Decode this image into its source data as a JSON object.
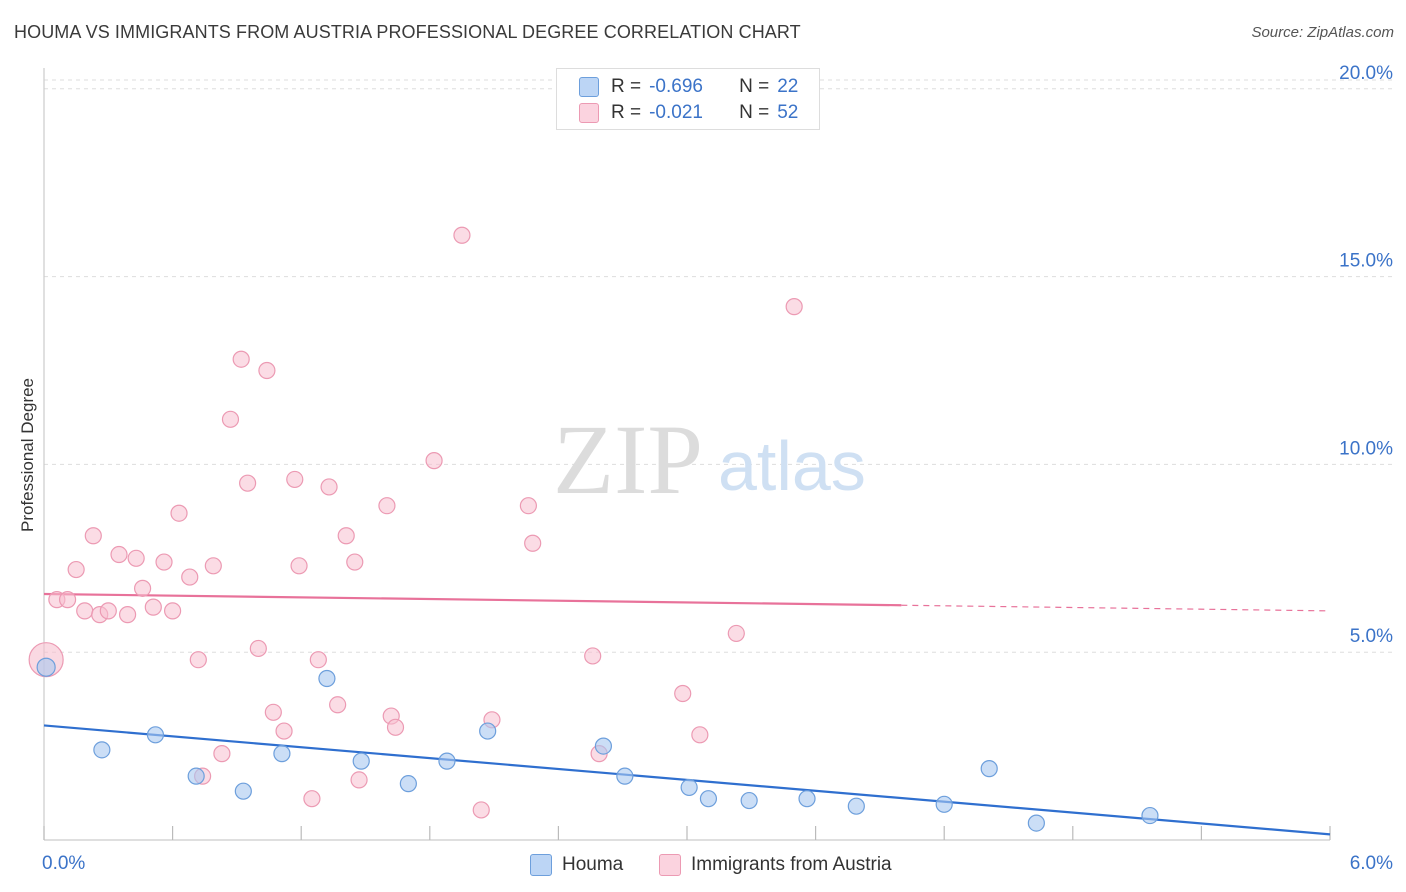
{
  "header": {
    "title": "HOUMA VS IMMIGRANTS FROM AUSTRIA PROFESSIONAL DEGREE CORRELATION CHART",
    "source": "Source: ZipAtlas.com"
  },
  "watermark": {
    "zip": "ZIP",
    "atlas": "atlas"
  },
  "colors": {
    "houma_fill": "#a8c8f0",
    "houma_stroke": "#6d9fdc",
    "houma_line": "#2f6fcf",
    "austria_fill": "#f7bfcf",
    "austria_stroke": "#ec9ab3",
    "austria_line": "#e8729a",
    "value_blue": "#3b73c8"
  },
  "stats_legend": {
    "rows": [
      {
        "r_label": "R =",
        "r_value": "-0.696",
        "n_label": "N =",
        "n_value": "22"
      },
      {
        "r_label": "R =",
        "r_value": "-0.021",
        "n_label": "N =",
        "n_value": "52"
      }
    ]
  },
  "chart_data": {
    "type": "scatter",
    "title": "HOUMA VS IMMIGRANTS FROM AUSTRIA PROFESSIONAL DEGREE CORRELATION CHART",
    "xlabel": "",
    "ylabel": "Professional Degree",
    "xlim": [
      0,
      6
    ],
    "ylim": [
      0,
      20.5
    ],
    "x_tick_labels": [
      "0.0%",
      "6.0%"
    ],
    "y_ticks": [
      5,
      10,
      15,
      20
    ],
    "y_tick_labels": [
      "5.0%",
      "10.0%",
      "15.0%",
      "20.0%"
    ],
    "grid": true,
    "legend_position": "bottom",
    "series": [
      {
        "name": "Houma",
        "points": [
          [
            0.01,
            4.6
          ],
          [
            0.27,
            2.4
          ],
          [
            0.52,
            2.8
          ],
          [
            0.71,
            1.7
          ],
          [
            0.93,
            1.3
          ],
          [
            1.11,
            2.3
          ],
          [
            1.32,
            4.3
          ],
          [
            1.48,
            2.1
          ],
          [
            1.7,
            1.5
          ],
          [
            1.88,
            2.1
          ],
          [
            2.07,
            2.9
          ],
          [
            2.61,
            2.5
          ],
          [
            2.71,
            1.7
          ],
          [
            3.01,
            1.4
          ],
          [
            3.1,
            1.1
          ],
          [
            3.29,
            1.05
          ],
          [
            3.56,
            1.1
          ],
          [
            3.79,
            0.9
          ],
          [
            4.2,
            0.95
          ],
          [
            4.41,
            1.9
          ],
          [
            4.63,
            0.45
          ],
          [
            5.16,
            0.65
          ]
        ],
        "trend": {
          "x": [
            0,
            6
          ],
          "y": [
            3.05,
            0.15
          ]
        }
      },
      {
        "name": "Immigrants from Austria",
        "points": [
          [
            0.01,
            4.8
          ],
          [
            0.06,
            6.4
          ],
          [
            0.11,
            6.4
          ],
          [
            0.15,
            7.2
          ],
          [
            0.19,
            6.1
          ],
          [
            0.23,
            8.1
          ],
          [
            0.26,
            6.0
          ],
          [
            0.3,
            6.1
          ],
          [
            0.35,
            7.6
          ],
          [
            0.39,
            6.0
          ],
          [
            0.43,
            7.5
          ],
          [
            0.46,
            6.7
          ],
          [
            0.51,
            6.2
          ],
          [
            0.56,
            7.4
          ],
          [
            0.6,
            6.1
          ],
          [
            0.63,
            8.7
          ],
          [
            0.68,
            7.0
          ],
          [
            0.72,
            4.8
          ],
          [
            0.74,
            1.7
          ],
          [
            0.79,
            7.3
          ],
          [
            0.83,
            2.3
          ],
          [
            0.87,
            11.2
          ],
          [
            0.92,
            12.8
          ],
          [
            0.95,
            9.5
          ],
          [
            1.0,
            5.1
          ],
          [
            1.04,
            12.5
          ],
          [
            1.07,
            3.4
          ],
          [
            1.12,
            2.9
          ],
          [
            1.17,
            9.6
          ],
          [
            1.19,
            7.3
          ],
          [
            1.25,
            1.1
          ],
          [
            1.28,
            4.8
          ],
          [
            1.33,
            9.4
          ],
          [
            1.37,
            3.6
          ],
          [
            1.41,
            8.1
          ],
          [
            1.45,
            7.4
          ],
          [
            1.47,
            1.6
          ],
          [
            1.6,
            8.9
          ],
          [
            1.62,
            3.3
          ],
          [
            1.64,
            3.0
          ],
          [
            1.82,
            10.1
          ],
          [
            1.95,
            16.1
          ],
          [
            2.04,
            0.8
          ],
          [
            2.09,
            3.2
          ],
          [
            2.26,
            8.9
          ],
          [
            2.28,
            7.9
          ],
          [
            2.56,
            4.9
          ],
          [
            2.59,
            2.3
          ],
          [
            2.98,
            3.9
          ],
          [
            3.06,
            2.8
          ],
          [
            3.23,
            5.5
          ],
          [
            3.5,
            14.2
          ]
        ],
        "trend": {
          "x": [
            0,
            4
          ],
          "y": [
            6.55,
            6.25
          ]
        },
        "trend_dashed": {
          "x": [
            4,
            6
          ],
          "y": [
            6.25,
            6.1
          ]
        }
      }
    ]
  },
  "bottom_legend": {
    "items": [
      "Houma",
      "Immigrants from Austria"
    ]
  }
}
